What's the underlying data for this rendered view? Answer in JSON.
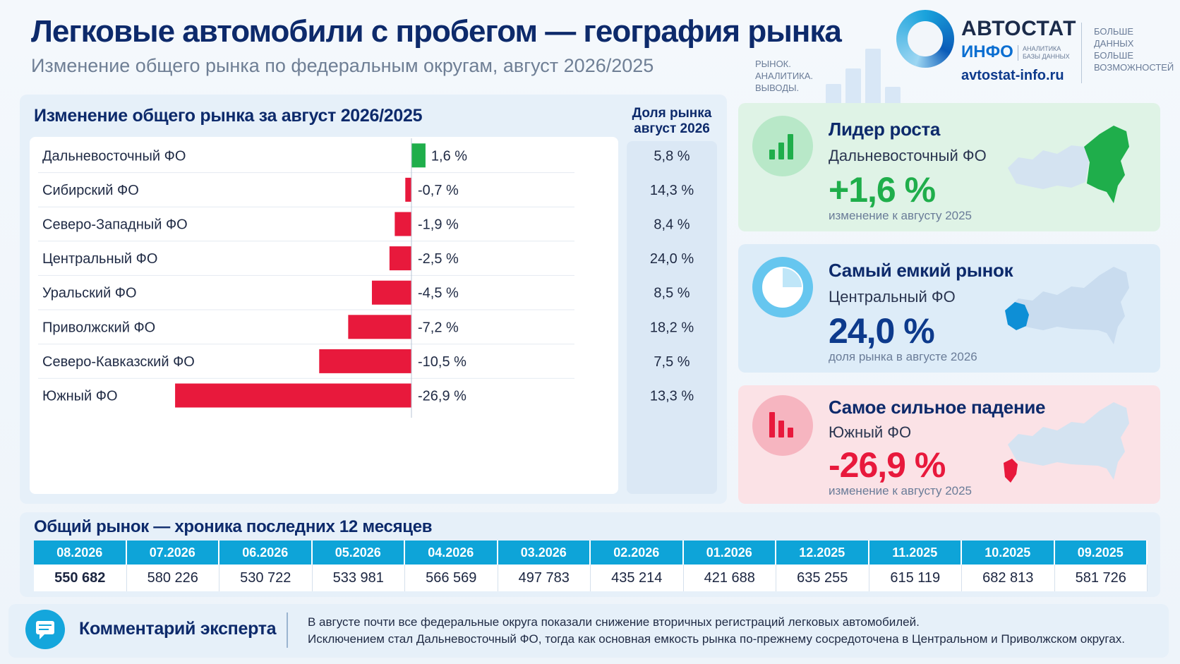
{
  "header": {
    "title": "Легковые автомобили с пробегом — география рынка",
    "subtitle": "Изменение общего рынка по федеральным округам, август 2026/2025"
  },
  "brand": {
    "tagline": [
      "РЫНОК.",
      "АНАЛИТИКА.",
      "ВЫВОДЫ."
    ],
    "logo_main": "АВТОСТАТ",
    "logo_sub": "ИНФО",
    "logo_small": [
      "АНАЛИТИКА",
      "БАЗЫ ДАННЫХ"
    ],
    "site": "avtostat-info.ru",
    "motto": [
      "БОЛЬШЕ",
      "ДАННЫХ",
      "БОЛЬШЕ",
      "ВОЗМОЖНОСТЕЙ"
    ]
  },
  "left_panel": {
    "title": "Изменение общего рынка за август 2026/2025",
    "share_header_line1": "Доля рынка",
    "share_header_line2": "август 2026"
  },
  "chart_data": {
    "type": "bar",
    "orientation": "horizontal",
    "title": "Изменение общего рынка за август 2026/2025",
    "categories": [
      "Дальневосточный ФО",
      "Сибирский ФО",
      "Северо-Западный ФО",
      "Центральный ФО",
      "Уральский ФО",
      "Приволжский ФО",
      "Северо-Кавказский ФО",
      "Южный ФО"
    ],
    "values": [
      1.6,
      -0.7,
      -1.9,
      -2.5,
      -4.5,
      -7.2,
      -10.5,
      -26.9
    ],
    "value_labels": [
      "1,6 %",
      "-0,7 %",
      "-1,9 %",
      "-2,5 %",
      "-4,5 %",
      "-7,2 %",
      "-10,5 %",
      "-26,9 %"
    ],
    "market_share_august_2026": [
      "5,8 %",
      "14,3 %",
      "8,4 %",
      "24,0 %",
      "8,5 %",
      "18,2 %",
      "7,5 %",
      "13,3 %"
    ],
    "colors": {
      "positive": "#1fae4b",
      "negative": "#e8193c"
    }
  },
  "cards": [
    {
      "title": "Лидер роста",
      "region": "Дальневосточный ФО",
      "value": "+1,6 %",
      "note": "изменение к августу 2025",
      "icon": "bar-chart-icon",
      "accent": "#1fae4b",
      "bg": "#dff3e6",
      "icon_bg": "#b8e8c8"
    },
    {
      "title": "Самый емкий рынок",
      "region": "Центральный ФО",
      "value": "24,0 %",
      "note": "доля рынка в августе 2026",
      "icon": "pie-chart-icon",
      "accent": "#0d3a8c",
      "bg": "#ddecf8",
      "icon_bg": "#66c6ef"
    },
    {
      "title": "Самое сильное падение",
      "region": "Южный ФО",
      "value": "-26,9 %",
      "note": "изменение к августу 2025",
      "icon": "falling-bars-icon",
      "accent": "#e8193c",
      "bg": "#fbe2e6",
      "icon_bg": "#f6b5c0"
    }
  ],
  "history": {
    "title": "Общий рынок — хроника последних 12 месяцев",
    "months": [
      "08.2026",
      "07.2026",
      "06.2026",
      "05.2026",
      "04.2026",
      "03.2026",
      "02.2026",
      "01.2026",
      "12.2025",
      "11.2025",
      "10.2025",
      "09.2025"
    ],
    "values": [
      "550 682",
      "580 226",
      "530 722",
      "533 981",
      "566 569",
      "497 783",
      "435 214",
      "421 688",
      "635 255",
      "615 119",
      "682 813",
      "581 726"
    ]
  },
  "comment": {
    "label": "Комментарий эксперта",
    "line1": "В августе почти все федеральные округа показали снижение вторичных регистраций легковых автомобилей.",
    "line2": "Исключением стал Дальневосточный ФО, тогда как основная емкость рынка по-прежнему сосредоточена в Центральном и Приволжском округах."
  }
}
